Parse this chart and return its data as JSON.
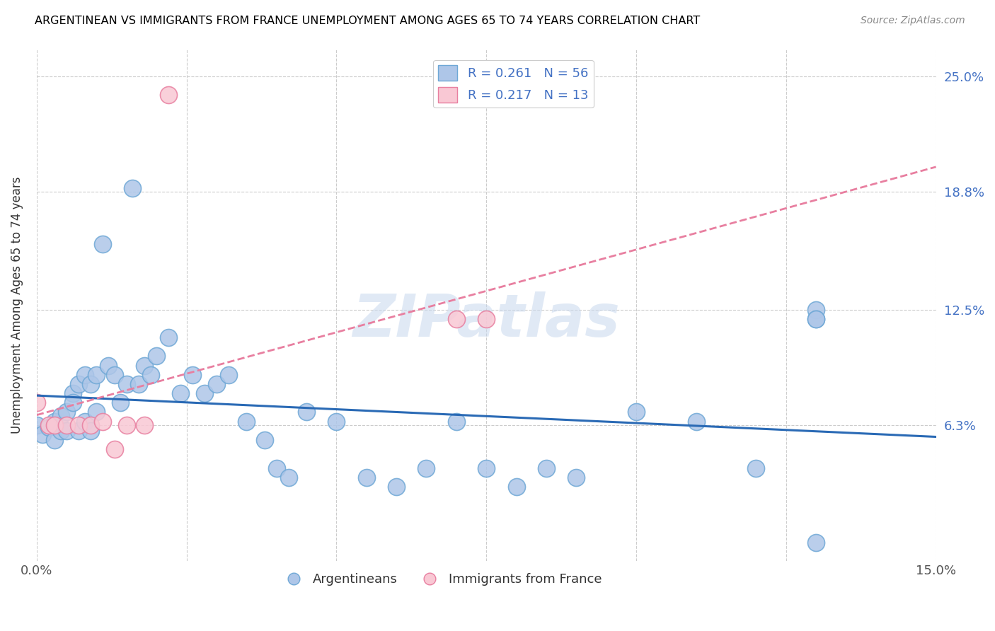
{
  "title": "ARGENTINEAN VS IMMIGRANTS FROM FRANCE UNEMPLOYMENT AMONG AGES 65 TO 74 YEARS CORRELATION CHART",
  "source": "Source: ZipAtlas.com",
  "ylabel": "Unemployment Among Ages 65 to 74 years",
  "xlim": [
    0.0,
    0.15
  ],
  "ylim": [
    -0.01,
    0.265
  ],
  "ytick_labels": [
    "6.3%",
    "12.5%",
    "18.8%",
    "25.0%"
  ],
  "ytick_values": [
    0.063,
    0.125,
    0.188,
    0.25
  ],
  "xtick_values": [
    0.0,
    0.025,
    0.05,
    0.075,
    0.1,
    0.125,
    0.15
  ],
  "xtick_labels": [
    "0.0%",
    "",
    "",
    "",
    "",
    "",
    "15.0%"
  ],
  "legend_bottom_label1": "Argentineans",
  "legend_bottom_label2": "Immigrants from France",
  "blue_color": "#aec6e8",
  "blue_edge_color": "#6fa8d6",
  "pink_color": "#f9c8d4",
  "pink_edge_color": "#e87fa0",
  "blue_line_color": "#2a6ab5",
  "pink_line_color": "#e87fa0",
  "argentinean_x": [
    0.0,
    0.001,
    0.002,
    0.003,
    0.003,
    0.004,
    0.004,
    0.005,
    0.005,
    0.006,
    0.006,
    0.007,
    0.007,
    0.008,
    0.008,
    0.009,
    0.009,
    0.01,
    0.01,
    0.011,
    0.012,
    0.013,
    0.014,
    0.015,
    0.016,
    0.017,
    0.018,
    0.019,
    0.02,
    0.022,
    0.024,
    0.026,
    0.028,
    0.03,
    0.032,
    0.035,
    0.038,
    0.04,
    0.042,
    0.045,
    0.05,
    0.055,
    0.06,
    0.065,
    0.07,
    0.075,
    0.08,
    0.085,
    0.09,
    0.1,
    0.11,
    0.12,
    0.13,
    0.13,
    0.13,
    0.13
  ],
  "argentinean_y": [
    0.063,
    0.058,
    0.062,
    0.065,
    0.055,
    0.06,
    0.068,
    0.07,
    0.06,
    0.08,
    0.075,
    0.085,
    0.06,
    0.09,
    0.065,
    0.085,
    0.06,
    0.09,
    0.07,
    0.16,
    0.095,
    0.09,
    0.075,
    0.085,
    0.19,
    0.085,
    0.095,
    0.09,
    0.1,
    0.11,
    0.08,
    0.09,
    0.08,
    0.085,
    0.09,
    0.065,
    0.055,
    0.04,
    0.035,
    0.07,
    0.065,
    0.035,
    0.03,
    0.04,
    0.065,
    0.04,
    0.03,
    0.04,
    0.035,
    0.07,
    0.065,
    0.04,
    0.0,
    0.125,
    0.12,
    0.12
  ],
  "france_x": [
    0.0,
    0.002,
    0.003,
    0.005,
    0.007,
    0.009,
    0.011,
    0.013,
    0.015,
    0.018,
    0.022,
    0.07,
    0.075
  ],
  "france_y": [
    0.075,
    0.063,
    0.063,
    0.063,
    0.063,
    0.063,
    0.065,
    0.05,
    0.063,
    0.063,
    0.24,
    0.12,
    0.12
  ]
}
